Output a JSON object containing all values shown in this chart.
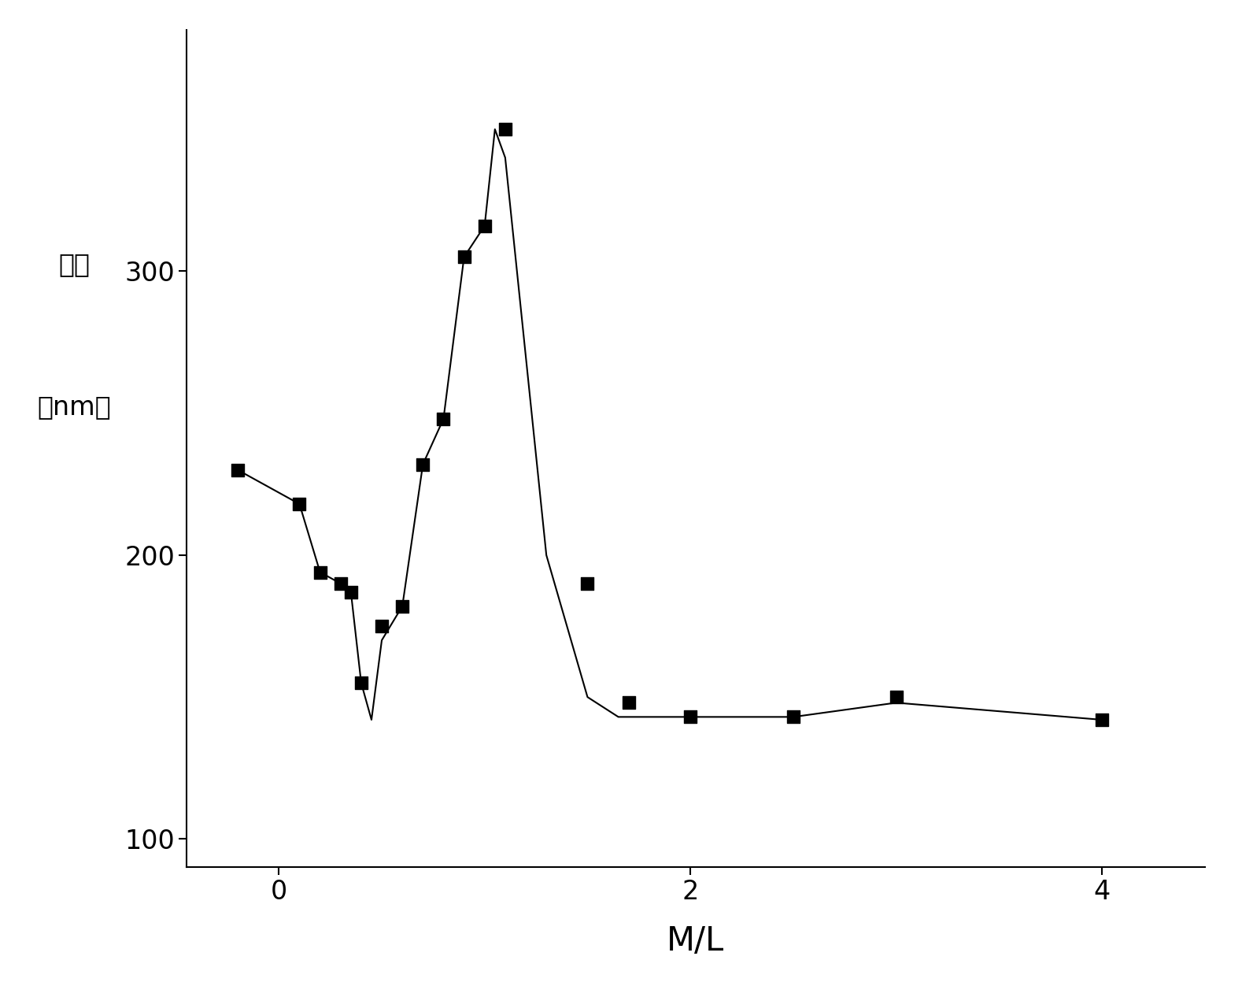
{
  "scatter_x": [
    -0.2,
    0.1,
    0.2,
    0.3,
    0.35,
    0.4,
    0.5,
    0.6,
    0.7,
    0.8,
    0.9,
    1.0,
    1.1,
    1.5,
    1.7,
    2.0,
    2.5,
    3.0,
    4.0
  ],
  "scatter_y": [
    230,
    218,
    194,
    190,
    187,
    155,
    175,
    182,
    232,
    248,
    305,
    316,
    350,
    190,
    148,
    143,
    143,
    150,
    142
  ],
  "line_x": [
    -0.2,
    0.1,
    0.2,
    0.3,
    0.35,
    0.4,
    0.45,
    0.5,
    0.6,
    0.7,
    0.8,
    0.9,
    1.0,
    1.05,
    1.1,
    1.3,
    1.5,
    1.65,
    1.7,
    2.0,
    2.5,
    3.0,
    4.0
  ],
  "line_y": [
    230,
    218,
    194,
    190,
    187,
    155,
    142,
    170,
    182,
    232,
    248,
    305,
    316,
    350,
    340,
    200,
    150,
    143,
    143,
    143,
    143,
    148,
    142
  ],
  "xlabel": "M/L",
  "ylabel_line1": "粒径",
  "ylabel_line2": "（nm）",
  "xlim": [
    -0.45,
    4.5
  ],
  "ylim": [
    90,
    385
  ],
  "yticks": [
    100,
    200,
    300
  ],
  "xticks": [
    0,
    2,
    4
  ],
  "background_color": "#ffffff",
  "line_color": "#000000",
  "marker_color": "#000000",
  "xlabel_fontsize": 30,
  "ylabel_fontsize": 24,
  "tick_fontsize": 24,
  "marker_size": 11
}
